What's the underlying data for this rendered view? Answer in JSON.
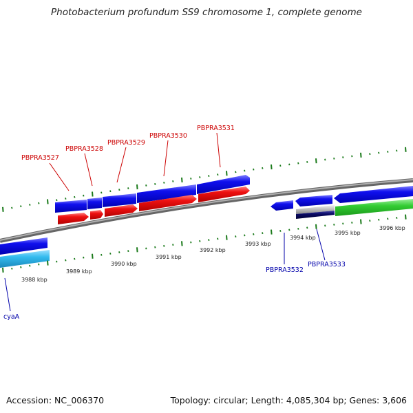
{
  "title": "Photobacterium profundum SS9 chromosome 1, complete genome",
  "accession": "Accession: NC_006370",
  "stats": "Topology: circular; Length: 4,085,304 bp; Genes: 3,606",
  "scale_labels": [
    "3988 kbp",
    "3989 kbp",
    "3990 kbp",
    "3991 kbp",
    "3992 kbp",
    "3993 kbp",
    "3994 kbp",
    "3995 kbp",
    "3996 kbp"
  ],
  "gene_labels_top": [
    "PBPRA3527",
    "PBPRA3528",
    "PBPRA3529",
    "PBPRA3530",
    "PBPRA3531"
  ],
  "gene_labels_bottom": [
    "PBPRA3532",
    "PBPRA3533",
    "cyaA"
  ],
  "colors": {
    "cds_forward": "#0a0ae0",
    "cds_reverse": "#ee1111",
    "gene_light": "#33bbee",
    "gene_green": "#33cc33",
    "gene_navy": "#0a0a66",
    "backbone": "#888888",
    "tick": "#1a7a1a",
    "label_top": "#cc0000",
    "label_bottom": "#0000aa"
  }
}
